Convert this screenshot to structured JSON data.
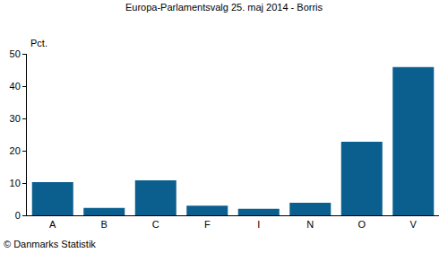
{
  "chart_data": {
    "type": "bar",
    "title": "Europa-Parlamentsvalg 25. maj 2014 - Borris",
    "ylabel": "Pct.",
    "annotations": [
      "© Danmarks Statistik"
    ],
    "categories": [
      "A",
      "B",
      "C",
      "F",
      "I",
      "N",
      "O",
      "V"
    ],
    "values": [
      10.3,
      2.3,
      10.8,
      3.0,
      2.0,
      3.9,
      22.8,
      45.9
    ],
    "color": "#0a5f8e",
    "ylim": [
      0,
      50
    ],
    "yticks": [
      0,
      10,
      20,
      30,
      40,
      50
    ],
    "grid": false
  }
}
